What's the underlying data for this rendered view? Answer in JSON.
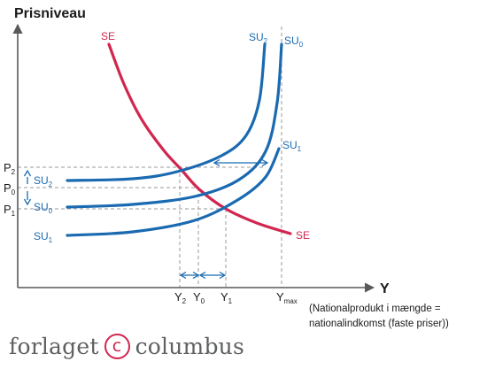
{
  "chart_data": {
    "type": "line",
    "ylabel": "Prisniveau",
    "xlabel": "Y",
    "xlabel_note_line1": "(Nationalprodukt i mængde =",
    "xlabel_note_line2": "nationalindkomst (faste priser))",
    "grid": false,
    "colors": {
      "supply": "#1a6ab1",
      "demand": "#d1264f",
      "guide": "#9a9a9a",
      "axis": "#595959"
    },
    "series": [
      {
        "name": "SE",
        "label_top": "SE",
        "label_bottom": "SE",
        "points": [
          [
            123,
            50
          ],
          [
            140,
            95
          ],
          [
            160,
            135
          ],
          [
            185,
            170
          ],
          [
            205,
            192
          ],
          [
            225,
            214
          ],
          [
            255,
            236
          ],
          [
            290,
            252
          ],
          [
            328,
            264
          ]
        ]
      },
      {
        "name": "SU2",
        "label": "SU",
        "label_sub": "2",
        "label_left": "SU",
        "label_left_sub": "2",
        "points": [
          [
            76,
            204
          ],
          [
            150,
            202
          ],
          [
            200,
            194
          ],
          [
            250,
            176
          ],
          [
            278,
            153
          ],
          [
            293,
            113
          ],
          [
            299,
            50
          ]
        ]
      },
      {
        "name": "SU0",
        "label": "SU",
        "label_sub": "0",
        "label_left": "SU",
        "label_left_sub": "0",
        "points": [
          [
            76,
            234
          ],
          [
            150,
            231
          ],
          [
            220,
            222
          ],
          [
            270,
            203
          ],
          [
            300,
            171
          ],
          [
            313,
            116
          ],
          [
            318,
            50
          ]
        ]
      },
      {
        "name": "SU1",
        "label": "SU",
        "label_sub": "1",
        "label_left": "SU",
        "label_left_sub": "1",
        "points": [
          [
            76,
            266
          ],
          [
            150,
            262
          ],
          [
            220,
            249
          ],
          [
            270,
            225
          ],
          [
            300,
            200
          ],
          [
            315,
            168
          ]
        ]
      }
    ],
    "price_levels": [
      {
        "label": "P",
        "sub": "2",
        "value": 189
      },
      {
        "label": "P",
        "sub": "0",
        "value": 212
      },
      {
        "label": "P",
        "sub": "1",
        "value": 236
      }
    ],
    "output_levels": [
      {
        "label": "Y",
        "sub": "2",
        "value": 203
      },
      {
        "label": "Y",
        "sub": "0",
        "value": 224
      },
      {
        "label": "Y",
        "sub": "1",
        "value": 255
      },
      {
        "label": "Y",
        "sub": "max",
        "value": 318
      }
    ],
    "annotations": [
      "horizontal shift arrows between SU curves",
      "vertical arrows between P2 and P1"
    ]
  },
  "brand": {
    "left": "forlaget",
    "mark": "c",
    "right": "columbus"
  }
}
